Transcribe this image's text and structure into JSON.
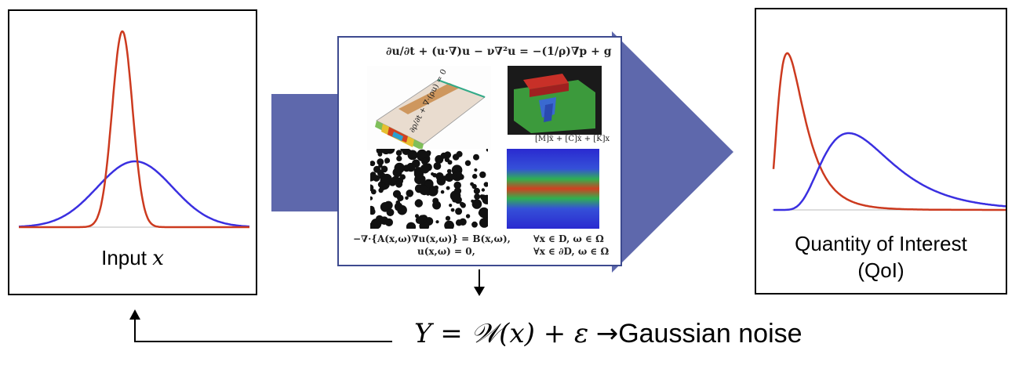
{
  "input_panel": {
    "label_text": "Input ",
    "label_var": "x"
  },
  "qoi_panel": {
    "label_line1": "Quantity of Interest",
    "label_line2": "(QoI)"
  },
  "model_box": {
    "navier_stokes": "∂u/∂t + (u·∇)u − ν∇²u = −(1/ρ)∇p + g",
    "continuity": "∂ρ/∂t + ∇·(ρu) = 0",
    "structural": "[M]ẍ + [C]ẋ + [K]x",
    "elliptic_line1": "−∇·{A(x,ω)∇u(x,ω)} = B(x,ω),",
    "elliptic_cond1": "∀x ∈ D, ω ∈ Ω",
    "elliptic_line2": "u(x,ω) = 0,",
    "elliptic_cond2": "∀x ∈ ∂D, ω ∈ Ω"
  },
  "bottom_equation": {
    "lhs": "Υ = 𝒲(x) + ε",
    "arrow": "→",
    "noise_label": "Gaussian noise"
  },
  "colors": {
    "red_curve": "#cc3a1f",
    "blue_curve": "#3a2fe0",
    "arrow_fill": "#4f5aa6"
  }
}
